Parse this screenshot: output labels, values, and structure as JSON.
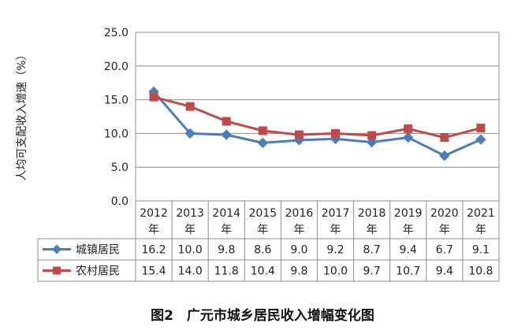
{
  "chart_data": {
    "type": "line",
    "ylabel": "人均可支配收入增速（%）",
    "ylim": [
      0,
      25
    ],
    "yticks": [
      "0.0",
      "5.0",
      "10.0",
      "15.0",
      "20.0",
      "25.0"
    ],
    "categories": [
      "2012",
      "2013",
      "2014",
      "2015",
      "2016",
      "2017",
      "2018",
      "2019",
      "2020",
      "2021"
    ],
    "category_suffix": "年",
    "grid": true,
    "data_table": true,
    "series": [
      {
        "name": "城镇居民",
        "color": "#4a7ebb",
        "marker": "diamond",
        "values": [
          16.2,
          10.0,
          9.8,
          8.6,
          9.0,
          9.2,
          8.7,
          9.4,
          6.7,
          9.1
        ],
        "labels": [
          "16.2",
          "10.0",
          "9.8",
          "8.6",
          "9.0",
          "9.2",
          "8.7",
          "9.4",
          "6.7",
          "9.1"
        ]
      },
      {
        "name": "农村居民",
        "color": "#be4b48",
        "marker": "square",
        "values": [
          15.4,
          14.0,
          11.8,
          10.4,
          9.8,
          10.0,
          9.7,
          10.7,
          9.4,
          10.8
        ],
        "labels": [
          "15.4",
          "14.0",
          "11.8",
          "10.4",
          "9.8",
          "10.0",
          "9.7",
          "10.7",
          "9.4",
          "10.8"
        ]
      }
    ]
  },
  "caption": "图2　广元市城乡居民收入增幅变化图"
}
